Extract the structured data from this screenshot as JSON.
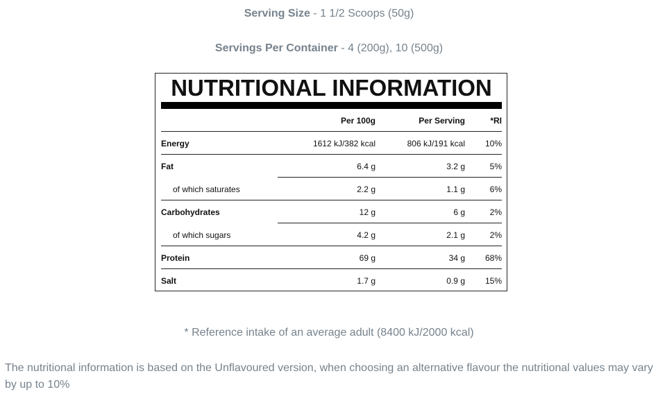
{
  "serving_size": {
    "label": "Serving Size",
    "value": " - 1 1/2 Scoops (50g)"
  },
  "servings_per_container": {
    "label": "Servings Per Container",
    "value": " - 4 (200g), 10 (500g)"
  },
  "table": {
    "title": "NUTRITIONAL INFORMATION",
    "headers": [
      "",
      "Per 100g",
      "Per Serving",
      "*RI"
    ],
    "rows": [
      {
        "label": "Energy",
        "per100": "1612 kJ/382 kcal",
        "serving": "806 kJ/191 kcal",
        "ri": "10%"
      },
      {
        "label": "Fat",
        "per100": "6.4 g",
        "serving": "3.2 g",
        "ri": "5%"
      },
      {
        "label": "of which saturates",
        "per100": "2.2 g",
        "serving": "1.1 g",
        "ri": "6%"
      },
      {
        "label": "Carbohydrates",
        "per100": "12 g",
        "serving": "6 g",
        "ri": "2%"
      },
      {
        "label": "of which sugars",
        "per100": "4.2 g",
        "serving": "2.1 g",
        "ri": "2%"
      },
      {
        "label": "Protein",
        "per100": "69 g",
        "serving": "34 g",
        "ri": "68%"
      },
      {
        "label": "Salt",
        "per100": "1.7 g",
        "serving": "0.9 g",
        "ri": "15%"
      }
    ]
  },
  "reference_note": "* Reference intake of an average adult (8400 kJ/2000 kcal)",
  "disclaimer": "The nutritional information is based on the Unflavoured version, when choosing an alternative flavour the nutritional values may vary by up to 10%"
}
